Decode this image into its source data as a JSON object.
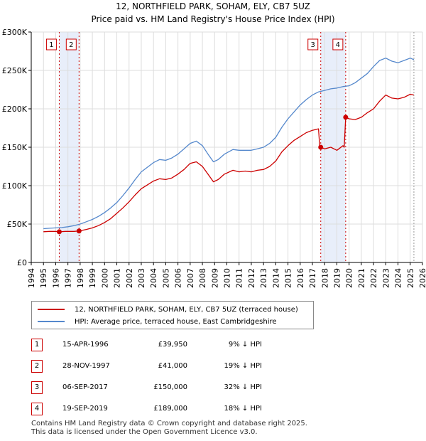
{
  "header": {
    "title": "12, NORTHFIELD PARK, SOHAM, ELY, CB7 5UZ",
    "subtitle": "Price paid vs. HM Land Registry's House Price Index (HPI)"
  },
  "colors": {
    "property": "#cc0000",
    "hpi": "#5588cc",
    "band": "#e8eefa",
    "grid": "#dddddd"
  },
  "chart_data": {
    "type": "line",
    "xlim": [
      1994,
      2026
    ],
    "ylim": [
      0,
      300000
    ],
    "y_ticks": [
      0,
      50000,
      100000,
      150000,
      200000,
      250000,
      300000
    ],
    "y_tick_labels": [
      "£0",
      "£50K",
      "£100K",
      "£150K",
      "£200K",
      "£250K",
      "£300K"
    ],
    "x_ticks": [
      1994,
      1995,
      1996,
      1997,
      1998,
      1999,
      2000,
      2001,
      2002,
      2003,
      2004,
      2005,
      2006,
      2007,
      2008,
      2009,
      2010,
      2011,
      2012,
      2013,
      2014,
      2015,
      2016,
      2017,
      2018,
      2019,
      2020,
      2021,
      2022,
      2023,
      2024,
      2025,
      2026
    ],
    "x_tick_labels": [
      "1994",
      "1995",
      "1996",
      "1997",
      "1998",
      "1999",
      "2000",
      "2001",
      "2002",
      "2003",
      "2004",
      "2005",
      "2006",
      "2007",
      "2008",
      "2009",
      "2010",
      "2011",
      "2012",
      "2013",
      "2014",
      "2015",
      "2016",
      "2017",
      "2018",
      "2019",
      "2020",
      "2021",
      "2022",
      "2023",
      "2024",
      "2025",
      "2026"
    ],
    "series": [
      {
        "name": "12, NORTHFIELD PARK, SOHAM, ELY, CB7 5UZ (terraced house)",
        "color": "#cc0000",
        "points": [
          [
            1995.0,
            40000
          ],
          [
            1995.5,
            40500
          ],
          [
            1996.0,
            40500
          ],
          [
            1996.29,
            39950
          ],
          [
            1996.8,
            40500
          ],
          [
            1997.5,
            40500
          ],
          [
            1997.91,
            41000
          ],
          [
            1998.5,
            43000
          ],
          [
            1999.0,
            45000
          ],
          [
            1999.5,
            48000
          ],
          [
            2000.0,
            52000
          ],
          [
            2000.5,
            57000
          ],
          [
            2001.0,
            64000
          ],
          [
            2001.5,
            71000
          ],
          [
            2002.0,
            79000
          ],
          [
            2002.5,
            88000
          ],
          [
            2003.0,
            96000
          ],
          [
            2003.5,
            101000
          ],
          [
            2004.0,
            106000
          ],
          [
            2004.5,
            109000
          ],
          [
            2005.0,
            108000
          ],
          [
            2005.5,
            110000
          ],
          [
            2006.0,
            115000
          ],
          [
            2006.5,
            121000
          ],
          [
            2007.0,
            129000
          ],
          [
            2007.5,
            131000
          ],
          [
            2008.0,
            125000
          ],
          [
            2008.5,
            114000
          ],
          [
            2008.9,
            105000
          ],
          [
            2009.3,
            108000
          ],
          [
            2009.8,
            115000
          ],
          [
            2010.5,
            120000
          ],
          [
            2011.0,
            118000
          ],
          [
            2011.5,
            119000
          ],
          [
            2012.0,
            118000
          ],
          [
            2012.5,
            120000
          ],
          [
            2013.0,
            121000
          ],
          [
            2013.5,
            125000
          ],
          [
            2014.0,
            132000
          ],
          [
            2014.5,
            144000
          ],
          [
            2015.0,
            152000
          ],
          [
            2015.5,
            159000
          ],
          [
            2016.0,
            164000
          ],
          [
            2016.5,
            169000
          ],
          [
            2017.0,
            172000
          ],
          [
            2017.5,
            174000
          ],
          [
            2017.6,
            150000
          ],
          [
            2017.68,
            150000
          ],
          [
            2018.0,
            148000
          ],
          [
            2018.5,
            150000
          ],
          [
            2019.0,
            146000
          ],
          [
            2019.5,
            152000
          ],
          [
            2019.6,
            150000
          ],
          [
            2019.72,
            189000
          ],
          [
            2020.0,
            187000
          ],
          [
            2020.5,
            186000
          ],
          [
            2021.0,
            189000
          ],
          [
            2021.5,
            195000
          ],
          [
            2022.0,
            200000
          ],
          [
            2022.5,
            210000
          ],
          [
            2023.0,
            218000
          ],
          [
            2023.5,
            214000
          ],
          [
            2024.0,
            213000
          ],
          [
            2024.5,
            215000
          ],
          [
            2025.0,
            219000
          ],
          [
            2025.3,
            218000
          ]
        ]
      },
      {
        "name": "HPI: Average price, terraced house, East Cambridgeshire",
        "color": "#5588cc",
        "points": [
          [
            1995.0,
            44000
          ],
          [
            1995.5,
            44500
          ],
          [
            1996.0,
            45000
          ],
          [
            1996.5,
            45500
          ],
          [
            1997.0,
            46500
          ],
          [
            1997.5,
            48000
          ],
          [
            1998.0,
            50000
          ],
          [
            1998.5,
            53000
          ],
          [
            1999.0,
            56000
          ],
          [
            1999.5,
            60000
          ],
          [
            2000.0,
            65000
          ],
          [
            2000.5,
            71000
          ],
          [
            2001.0,
            78000
          ],
          [
            2001.5,
            87000
          ],
          [
            2002.0,
            97000
          ],
          [
            2002.5,
            108000
          ],
          [
            2003.0,
            118000
          ],
          [
            2003.5,
            124000
          ],
          [
            2004.0,
            130000
          ],
          [
            2004.5,
            134000
          ],
          [
            2005.0,
            133000
          ],
          [
            2005.5,
            136000
          ],
          [
            2006.0,
            141000
          ],
          [
            2006.5,
            148000
          ],
          [
            2007.0,
            155000
          ],
          [
            2007.5,
            158000
          ],
          [
            2008.0,
            152000
          ],
          [
            2008.5,
            140000
          ],
          [
            2008.9,
            131000
          ],
          [
            2009.3,
            134000
          ],
          [
            2009.8,
            141000
          ],
          [
            2010.5,
            147000
          ],
          [
            2011.0,
            146000
          ],
          [
            2011.5,
            146000
          ],
          [
            2012.0,
            146000
          ],
          [
            2012.5,
            148000
          ],
          [
            2013.0,
            150000
          ],
          [
            2013.5,
            155000
          ],
          [
            2014.0,
            163000
          ],
          [
            2014.5,
            176000
          ],
          [
            2015.0,
            187000
          ],
          [
            2015.5,
            196000
          ],
          [
            2016.0,
            205000
          ],
          [
            2016.5,
            212000
          ],
          [
            2017.0,
            218000
          ],
          [
            2017.5,
            222000
          ],
          [
            2018.0,
            224000
          ],
          [
            2018.5,
            226000
          ],
          [
            2019.0,
            227000
          ],
          [
            2019.5,
            229000
          ],
          [
            2020.0,
            230000
          ],
          [
            2020.5,
            234000
          ],
          [
            2021.0,
            240000
          ],
          [
            2021.5,
            246000
          ],
          [
            2022.0,
            255000
          ],
          [
            2022.5,
            263000
          ],
          [
            2023.0,
            266000
          ],
          [
            2023.5,
            262000
          ],
          [
            2024.0,
            260000
          ],
          [
            2024.5,
            263000
          ],
          [
            2025.0,
            266000
          ],
          [
            2025.3,
            264000
          ]
        ]
      }
    ],
    "transactions": [
      {
        "id": "1",
        "x": 1996.29,
        "y": 39950
      },
      {
        "id": "2",
        "x": 1997.91,
        "y": 41000
      },
      {
        "id": "3",
        "x": 2017.68,
        "y": 150000
      },
      {
        "id": "4",
        "x": 2019.72,
        "y": 189000
      }
    ],
    "highlight_ranges": [
      [
        1996.29,
        1997.91
      ],
      [
        2017.68,
        2019.72
      ]
    ]
  },
  "legend": {
    "property_label": "12, NORTHFIELD PARK, SOHAM, ELY, CB7 5UZ (terraced house)",
    "hpi_label": "HPI: Average price, terraced house, East Cambridgeshire"
  },
  "transactions_table": [
    {
      "id": "1",
      "date": "15-APR-1996",
      "price": "£39,950",
      "hpi": "9% ↓ HPI"
    },
    {
      "id": "2",
      "date": "28-NOV-1997",
      "price": "£41,000",
      "hpi": "19% ↓ HPI"
    },
    {
      "id": "3",
      "date": "06-SEP-2017",
      "price": "£150,000",
      "hpi": "32% ↓ HPI"
    },
    {
      "id": "4",
      "date": "19-SEP-2019",
      "price": "£189,000",
      "hpi": "18% ↓ HPI"
    }
  ],
  "footer": {
    "line1": "Contains HM Land Registry data © Crown copyright and database right 2025.",
    "line2": "This data is licensed under the Open Government Licence v3.0."
  }
}
